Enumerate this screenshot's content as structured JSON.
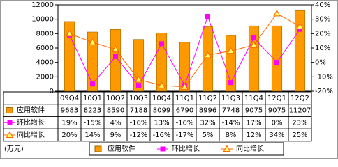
{
  "chart_data": {
    "type": "bar-line",
    "categories": [
      "09Q4",
      "10Q1",
      "10Q2",
      "10Q3",
      "10Q4",
      "11Q1",
      "11Q2",
      "11Q3",
      "11Q4",
      "12Q1",
      "12Q2"
    ],
    "unit_label": "(万元)",
    "series": [
      {
        "name": "应用软件",
        "type": "bar",
        "color": "#ff9900",
        "values": [
          9683,
          8223,
          8590,
          7188,
          8099,
          6790,
          8996,
          7748,
          9075,
          9075,
          11207
        ]
      },
      {
        "name": "环比增长",
        "type": "line",
        "marker": "square",
        "axis": "y2",
        "color": "#ff00ff",
        "values": [
          19,
          -15,
          4,
          -16,
          13,
          -16,
          32,
          -14,
          17,
          0,
          23
        ],
        "value_labels": [
          "19%",
          "-15%",
          "4%",
          "-16%",
          "13%",
          "-16%",
          "32%",
          "-14%",
          "17%",
          "0%",
          "23%"
        ]
      },
      {
        "name": "同比增长",
        "type": "line",
        "marker": "triangle",
        "axis": "y2",
        "color": "#ff6600",
        "values": [
          20,
          14,
          9,
          -12,
          -16,
          -17,
          5,
          8,
          12,
          34,
          25
        ],
        "value_labels": [
          "20%",
          "14%",
          "9%",
          "-12%",
          "-16%",
          "-17%",
          "5%",
          "8%",
          "12%",
          "34%",
          "25%"
        ]
      }
    ],
    "ylim": [
      0,
      12000
    ],
    "yticks": [
      0,
      2000,
      4000,
      6000,
      8000,
      10000,
      12000
    ],
    "y2lim": [
      -20,
      40
    ],
    "y2ticks": [
      {
        "value": -20,
        "label": "-20%"
      },
      {
        "value": -10,
        "label": "-10%"
      },
      {
        "value": 0,
        "label": "0%"
      },
      {
        "value": 10,
        "label": "10%"
      },
      {
        "value": 20,
        "label": "20%"
      },
      {
        "value": 30,
        "label": "30%"
      },
      {
        "value": 40,
        "label": "40%"
      }
    ]
  }
}
